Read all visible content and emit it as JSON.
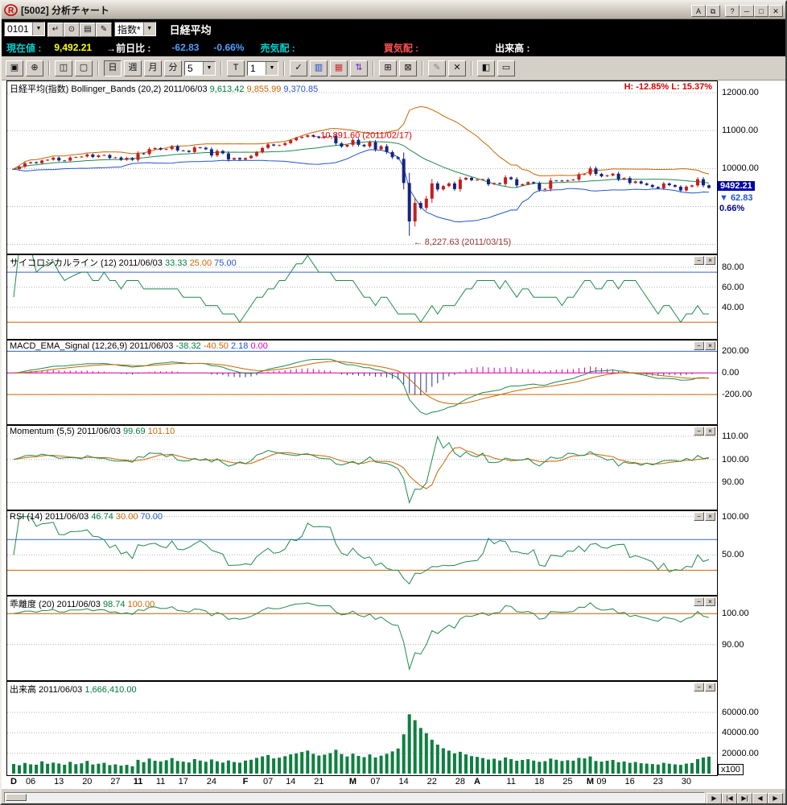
{
  "window": {
    "title": "[5002] 分析チャート",
    "titlebar_buttons": [
      {
        "name": "font-size-button",
        "label": "A"
      },
      {
        "name": "duplicate-window-button",
        "label": "⧉"
      },
      {
        "name": "help-button",
        "label": "?",
        "gap": true
      },
      {
        "name": "minimize-button",
        "label": "─"
      },
      {
        "name": "maximize-button",
        "label": "□"
      },
      {
        "name": "close-button",
        "label": "✕"
      }
    ]
  },
  "quote_bar": {
    "code": "0101",
    "category": "指数*",
    "name": "日経平均",
    "mini_buttons": [
      {
        "name": "enter-code-button",
        "glyph": "↵"
      },
      {
        "name": "symbol-search-button",
        "glyph": "⊙"
      },
      {
        "name": "registered-list-button",
        "glyph": "▤"
      },
      {
        "name": "memo-button",
        "glyph": "✎"
      }
    ]
  },
  "status_bar": {
    "label_price": "現在値 :",
    "price": "9,492.21",
    "label_change": "→前日比 :",
    "change": "-62.83",
    "change_pct": "-0.66%",
    "label_sell": "売気配 :",
    "label_buy": "買気配 :",
    "label_volume": "出来高 :"
  },
  "toolbar": {
    "items": [
      {
        "type": "button",
        "name": "capture-button",
        "glyph": "▣"
      },
      {
        "type": "button",
        "name": "zoom-button",
        "glyph": "⊕"
      },
      {
        "type": "sep"
      },
      {
        "type": "button",
        "name": "copy-chart-button",
        "glyph": "◫"
      },
      {
        "type": "button",
        "name": "page-setup-button",
        "glyph": "▢"
      },
      {
        "type": "sep"
      },
      {
        "type": "button",
        "name": "period-day-button",
        "glyph": "日",
        "pressed": true
      },
      {
        "type": "button",
        "name": "period-week-button",
        "glyph": "週"
      },
      {
        "type": "button",
        "name": "period-month-button",
        "glyph": "月"
      },
      {
        "type": "button",
        "name": "period-minute-button",
        "glyph": "分"
      },
      {
        "type": "combo",
        "name": "minute-interval-select",
        "value": "5"
      },
      {
        "type": "sep"
      },
      {
        "type": "button",
        "name": "tick-button",
        "glyph": "T"
      },
      {
        "type": "combo",
        "name": "tick-interval-select",
        "value": "1"
      },
      {
        "type": "sep"
      },
      {
        "type": "button",
        "name": "trendline-button",
        "glyph": "✓"
      },
      {
        "type": "button",
        "name": "bar-chart-type-button",
        "glyph": "▥",
        "color": "#2244cc"
      },
      {
        "type": "button",
        "name": "candle-chart-type-button",
        "glyph": "▦",
        "color": "#cc3333"
      },
      {
        "type": "button",
        "name": "price-arrows-button",
        "glyph": "⇅",
        "color": "#7722cc"
      },
      {
        "type": "sep"
      },
      {
        "type": "button",
        "name": "grid-on-button",
        "glyph": "⊞"
      },
      {
        "type": "button",
        "name": "grid-off-button",
        "glyph": "⊠"
      },
      {
        "type": "sep"
      },
      {
        "type": "button",
        "name": "draw-button",
        "glyph": "✎",
        "disabled": true
      },
      {
        "type": "button",
        "name": "erase-button",
        "glyph": "✕"
      },
      {
        "type": "sep"
      },
      {
        "type": "button",
        "name": "split-view-button",
        "glyph": "◧"
      },
      {
        "type": "button",
        "name": "layout-view-button",
        "glyph": "▭"
      }
    ]
  },
  "panel_controls": {
    "minimize": "−",
    "close": "×"
  },
  "nav_buttons": [
    {
      "name": "scroll-right-button",
      "label": "▶"
    },
    {
      "name": "jump-first-button",
      "label": "|◀"
    },
    {
      "name": "jump-last-button",
      "label": "▶|"
    },
    {
      "name": "step-back-button",
      "label": "◀"
    },
    {
      "name": "step-forward-button",
      "label": "▶"
    }
  ],
  "chart_data": {
    "type": "candlestick+indicators",
    "symbol": "日経平均(指数)",
    "date": "2011/06/03",
    "closes": [
      9988,
      10051,
      10140,
      10167,
      10141,
      10212,
      10232,
      10285,
      10212,
      10211,
      10293,
      10303,
      10316,
      10370,
      10304,
      10346,
      10355,
      10279,
      10292,
      10228,
      10279,
      10229,
      10398,
      10380,
      10512,
      10541,
      10499,
      10512,
      10589,
      10476,
      10468,
      10437,
      10557,
      10548,
      10508,
      10345,
      10464,
      10401,
      10238,
      10274,
      10237,
      10275,
      10335,
      10431,
      10543,
      10635,
      10605,
      10617,
      10670,
      10746,
      10808,
      10836,
      10879,
      10842,
      10808,
      10843,
      10857,
      10664,
      10579,
      10624,
      10754,
      10625,
      10586,
      10694,
      10505,
      10590,
      10434,
      10298,
      10254,
      9620,
      8605,
      9093,
      8962,
      9206,
      9608,
      9449,
      9536,
      9609,
      9459,
      9708,
      9755,
      9693,
      9708,
      9719,
      9584,
      9615,
      9591,
      9768,
      9719,
      9555,
      9587,
      9641,
      9606,
      9441,
      9465,
      9685,
      9682,
      9671,
      9691,
      9708,
      9849,
      9850,
      10004,
      9859,
      9794,
      9818,
      9864,
      9716,
      9749,
      9620,
      9662,
      9607,
      9567,
      9514,
      9477,
      9607,
      9562,
      9521,
      9422,
      9521,
      9555,
      9719,
      9555,
      9492.21
    ],
    "volume_x100": [
      9500,
      8200,
      10400,
      9100,
      8800,
      12000,
      9600,
      10800,
      9900,
      8700,
      11500,
      9200,
      10100,
      12500,
      8900,
      9700,
      10600,
      8400,
      9100,
      7800,
      8600,
      7200,
      13500,
      11200,
      14800,
      12600,
      11900,
      13100,
      15200,
      12400,
      11800,
      10900,
      14200,
      12800,
      11600,
      13900,
      12100,
      10800,
      12900,
      11400,
      10700,
      12800,
      13600,
      15400,
      16800,
      18200,
      14900,
      15600,
      17100,
      18900,
      19800,
      21200,
      22600,
      19400,
      17800,
      18600,
      20100,
      23400,
      19200,
      16800,
      19600,
      17400,
      16200,
      18800,
      15900,
      17600,
      19400,
      21800,
      24600,
      38500,
      58200,
      52400,
      44800,
      39600,
      33200,
      28400,
      24900,
      22600,
      19800,
      21400,
      18900,
      17200,
      16400,
      15200,
      13800,
      14600,
      12900,
      15800,
      14200,
      12600,
      13400,
      14100,
      12800,
      11600,
      12200,
      14800,
      13600,
      12400,
      13100,
      12700,
      15400,
      14900,
      16800,
      12400,
      11800,
      12600,
      13400,
      11200,
      11900,
      10600,
      11400,
      10200,
      9800,
      9400,
      8900,
      10600,
      9700,
      9100,
      8600,
      9800,
      10400,
      14200,
      15800,
      16664
    ],
    "extremes": {
      "high": {
        "index": 52,
        "value": 10891.6,
        "label": "10,891.60 (2011/02/17)"
      },
      "low": {
        "index": 70,
        "value": 8227.63,
        "label": "8,227.63 (2011/03/15)"
      }
    },
    "x_ticks": [
      {
        "i": 0,
        "t": "D",
        "b": true
      },
      {
        "i": 3,
        "t": "06"
      },
      {
        "i": 8,
        "t": "13"
      },
      {
        "i": 13,
        "t": "20"
      },
      {
        "i": 18,
        "t": "27"
      },
      {
        "i": 22,
        "t": "11",
        "b": true
      },
      {
        "i": 26,
        "t": "11"
      },
      {
        "i": 30,
        "t": "17"
      },
      {
        "i": 35,
        "t": "24"
      },
      {
        "i": 41,
        "t": "F",
        "b": true
      },
      {
        "i": 45,
        "t": "07"
      },
      {
        "i": 49,
        "t": "14"
      },
      {
        "i": 54,
        "t": "21"
      },
      {
        "i": 60,
        "t": "M",
        "b": true
      },
      {
        "i": 64,
        "t": "07"
      },
      {
        "i": 69,
        "t": "14"
      },
      {
        "i": 74,
        "t": "22"
      },
      {
        "i": 79,
        "t": "28"
      },
      {
        "i": 82,
        "t": "A",
        "b": true
      },
      {
        "i": 88,
        "t": "11"
      },
      {
        "i": 93,
        "t": "18"
      },
      {
        "i": 98,
        "t": "25"
      },
      {
        "i": 102,
        "t": "M",
        "b": true
      },
      {
        "i": 104,
        "t": "09"
      },
      {
        "i": 109,
        "t": "16"
      },
      {
        "i": 114,
        "t": "23"
      },
      {
        "i": 119,
        "t": "30"
      }
    ],
    "panels": [
      {
        "id": "main",
        "kind": "candles",
        "range": [
          7800,
          12300
        ],
        "title": [
          {
            "t": "日経平均(指数) Bollinger_Bands (20,2) 2011/06/03 ",
            "c": "#000000"
          },
          {
            "t": "9,613.42 ",
            "c": "#007a3d"
          },
          {
            "t": "9,855.99 ",
            "c": "#cc6600"
          },
          {
            "t": "9,370.85",
            "c": "#2255cc"
          }
        ],
        "hl": "H: -12.85%  L: 15.37%",
        "ticks": [
          {
            "v": 12000,
            "l": "12000.00"
          },
          {
            "v": 11000,
            "l": "11000.00"
          },
          {
            "v": 10000,
            "l": "10000.00"
          },
          {
            "v": 9000
          },
          {
            "v": 8000
          }
        ],
        "badge": {
          "value": 9492.21,
          "price": "9492.21",
          "down": "62.83",
          "pct": "0.66%"
        }
      },
      {
        "id": "psych",
        "kind": "psych",
        "range": [
          10,
          92
        ],
        "title": [
          {
            "t": "サイコロジカルライン (12) 2011/06/03 ",
            "c": "#000000"
          },
          {
            "t": "33.33 ",
            "c": "#007a3d"
          },
          {
            "t": "25.00 ",
            "c": "#cc6600"
          },
          {
            "t": "75.00",
            "c": "#2255cc"
          }
        ],
        "ticks": [
          {
            "v": 80,
            "l": "80.00"
          },
          {
            "v": 60,
            "l": "60.00"
          },
          {
            "v": 40,
            "l": "40.00"
          }
        ],
        "refs": [
          {
            "v": 75,
            "c": "#3366cc"
          },
          {
            "v": 25,
            "c": "#cc6600"
          }
        ]
      },
      {
        "id": "macd",
        "kind": "macd",
        "range": [
          -460,
          300
        ],
        "title": [
          {
            "t": "MACD_EMA_Signal (12,26,9) 2011/06/03 ",
            "c": "#000000"
          },
          {
            "t": "-38.32 ",
            "c": "#007a3d"
          },
          {
            "t": "-40.50 ",
            "c": "#cc6600"
          },
          {
            "t": "2.18 ",
            "c": "#2255cc"
          },
          {
            "t": "0.00",
            "c": "#dd00aa"
          }
        ],
        "ticks": [
          {
            "v": 200,
            "l": "200.00"
          },
          {
            "v": 0,
            "l": "0.00"
          },
          {
            "v": -200,
            "l": "-200.00"
          }
        ],
        "refs": [
          {
            "v": 200,
            "c": "#3366cc"
          },
          {
            "v": -200,
            "c": "#cc6600"
          }
        ]
      },
      {
        "id": "momentum",
        "kind": "momentum",
        "range": [
          79,
          114.5
        ],
        "title": [
          {
            "t": "Momentum (5,5) 2011/06/03 ",
            "c": "#000000"
          },
          {
            "t": "99.69 ",
            "c": "#007a3d"
          },
          {
            "t": "101.10",
            "c": "#cc6600"
          }
        ],
        "ticks": [
          {
            "v": 110,
            "l": "110.00"
          },
          {
            "v": 100,
            "l": "100.00"
          },
          {
            "v": 90,
            "l": "90.00"
          }
        ]
      },
      {
        "id": "rsi",
        "kind": "rsi",
        "range": [
          0,
          107
        ],
        "title": [
          {
            "t": "RSI (14) 2011/06/03 ",
            "c": "#000000"
          },
          {
            "t": "46.74 ",
            "c": "#007a3d"
          },
          {
            "t": "30.00 ",
            "c": "#cc6600"
          },
          {
            "t": "70.00",
            "c": "#2255cc"
          }
        ],
        "ticks": [
          {
            "v": 100,
            "l": "100.00"
          },
          {
            "v": 50,
            "l": "50.00"
          }
        ],
        "refs": [
          {
            "v": 70,
            "c": "#3366cc"
          },
          {
            "v": 30,
            "c": "#cc6600"
          }
        ]
      },
      {
        "id": "kairi",
        "kind": "kairi",
        "range": [
          79,
          105.5
        ],
        "title": [
          {
            "t": "乖離度 (20) 2011/06/03 ",
            "c": "#000000"
          },
          {
            "t": "98.74 ",
            "c": "#007a3d"
          },
          {
            "t": "100.00",
            "c": "#cc6600"
          }
        ],
        "ticks": [
          {
            "v": 100,
            "l": "100.00"
          },
          {
            "v": 90,
            "l": "90.00"
          }
        ],
        "refs": [
          {
            "v": 100,
            "c": "#cc6600"
          }
        ]
      },
      {
        "id": "volume",
        "kind": "volume",
        "range": [
          0,
          90000
        ],
        "unit": "x100",
        "title": [
          {
            "t": "出来高 2011/06/03 ",
            "c": "#000000"
          },
          {
            "t": "1,666,410.00",
            "c": "#007a3d"
          }
        ],
        "ticks": [
          {
            "v": 60000,
            "l": "60000.00"
          },
          {
            "v": 40000,
            "l": "40000.00"
          },
          {
            "v": 20000,
            "l": "20000.00"
          }
        ]
      }
    ]
  }
}
